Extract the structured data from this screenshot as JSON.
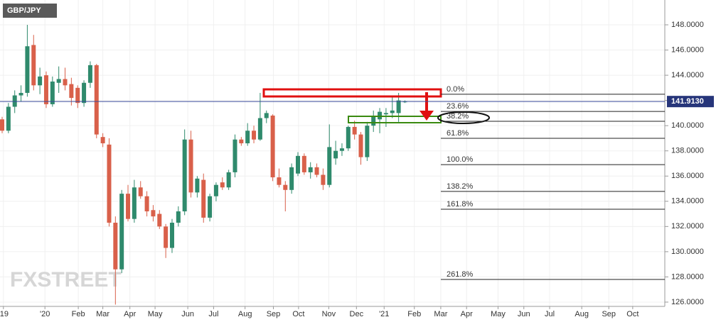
{
  "chart_data": {
    "type": "candlestick",
    "title": "GBP/JPY",
    "watermark": "FXSTREET",
    "up_color": "#2f8a6c",
    "down_color": "#d9604a",
    "x": [
      0,
      1,
      2,
      3,
      4,
      5,
      6,
      7,
      8,
      9,
      10,
      11,
      12,
      13,
      14,
      15,
      16,
      17,
      18,
      19,
      20,
      21,
      22,
      23,
      24,
      25,
      26,
      27,
      28,
      29,
      30,
      31,
      32,
      33,
      34,
      35,
      36,
      37,
      38,
      39,
      40,
      41,
      42,
      43,
      44,
      45,
      46,
      47,
      48,
      49,
      50,
      51,
      52,
      53,
      54,
      55,
      56,
      57,
      58,
      59,
      60,
      61,
      62,
      63,
      64
    ],
    "open": [
      140.5,
      139.6,
      141.5,
      142.4,
      142.6,
      146.4,
      143.2,
      144.0,
      141.7,
      143.4,
      143.7,
      143.3,
      143.0,
      141.8,
      143.4,
      144.8,
      139.1,
      138.5,
      132.3,
      128.6,
      134.6,
      132.6,
      135.1,
      134.4,
      133.3,
      133.0,
      132.0,
      130.3,
      132.3,
      133.2,
      138.9,
      134.7,
      135.7,
      132.7,
      134.4,
      135.5,
      135.1,
      136.3,
      138.9,
      138.6,
      139.6,
      138.9,
      140.6,
      140.8,
      135.9,
      135.3,
      134.9,
      136.2,
      137.6,
      136.3,
      136.7,
      136.1,
      135.3,
      137.4,
      138.0,
      138.2,
      139.9,
      139.3,
      137.5,
      140.0,
      140.5,
      140.9,
      141.0,
      141.0,
      141.9
    ],
    "high": [
      140.7,
      141.8,
      142.8,
      143.2,
      148.0,
      147.2,
      144.6,
      144.3,
      143.9,
      144.7,
      144.6,
      143.8,
      143.2,
      143.6,
      145.1,
      144.9,
      139.4,
      139.0,
      132.8,
      134.9,
      135.3,
      135.7,
      135.6,
      134.8,
      133.7,
      133.3,
      132.2,
      132.6,
      133.6,
      139.7,
      139.6,
      136.0,
      136.2,
      134.6,
      135.5,
      135.9,
      136.5,
      139.3,
      139.1,
      140.2,
      140.0,
      142.6,
      141.2,
      140.9,
      136.6,
      135.6,
      137.0,
      137.9,
      137.8,
      137.1,
      137.0,
      136.6,
      140.1,
      138.8,
      138.6,
      140.0,
      140.4,
      139.5,
      140.3,
      141.2,
      141.4,
      141.4,
      142.4,
      142.6,
      142.0
    ],
    "low": [
      139.4,
      139.4,
      141.0,
      141.9,
      142.3,
      142.8,
      142.5,
      141.4,
      141.5,
      142.6,
      142.8,
      141.6,
      141.4,
      141.5,
      143.0,
      139.0,
      138.3,
      132.0,
      125.8,
      128.3,
      132.4,
      132.3,
      134.2,
      132.8,
      132.4,
      131.8,
      129.5,
      129.9,
      132.0,
      132.9,
      134.3,
      134.3,
      132.3,
      132.4,
      134.0,
      134.9,
      134.9,
      135.9,
      138.4,
      138.4,
      138.6,
      138.8,
      140.2,
      135.6,
      135.1,
      133.2,
      134.6,
      136.0,
      136.1,
      135.8,
      135.9,
      134.9,
      135.1,
      136.9,
      137.6,
      138.0,
      138.9,
      136.9,
      137.2,
      139.5,
      139.4,
      139.9,
      140.6,
      140.3,
      141.8
    ],
    "close": [
      139.6,
      141.5,
      142.4,
      142.6,
      146.3,
      143.2,
      143.9,
      141.7,
      143.5,
      143.7,
      143.2,
      142.2,
      141.8,
      143.4,
      144.8,
      139.3,
      138.6,
      132.3,
      128.6,
      134.6,
      132.6,
      135.1,
      134.4,
      133.2,
      132.8,
      132.0,
      130.3,
      132.3,
      133.2,
      138.9,
      134.7,
      135.8,
      132.7,
      134.4,
      135.3,
      135.1,
      136.3,
      138.9,
      138.6,
      139.6,
      138.9,
      140.6,
      141.0,
      135.9,
      135.3,
      134.9,
      136.7,
      137.6,
      136.3,
      136.7,
      136.1,
      135.3,
      138.3,
      138.0,
      138.2,
      139.9,
      139.3,
      137.5,
      140.0,
      140.7,
      141.1,
      141.0,
      141.2,
      142.0,
      141.913
    ],
    "xlim": [
      -0.34,
      105.3
    ],
    "xticks": [
      {
        "value": 0.2,
        "label": "'19"
      },
      {
        "value": 6.8,
        "label": "'20"
      },
      {
        "value": 12.1,
        "label": "Feb"
      },
      {
        "value": 16.0,
        "label": "Mar"
      },
      {
        "value": 20.3,
        "label": "Apr"
      },
      {
        "value": 24.3,
        "label": "May"
      },
      {
        "value": 29.5,
        "label": "Jun"
      },
      {
        "value": 33.6,
        "label": "Jul"
      },
      {
        "value": 38.6,
        "label": "Aug"
      },
      {
        "value": 43.1,
        "label": "Sep"
      },
      {
        "value": 47.1,
        "label": "Oct"
      },
      {
        "value": 51.9,
        "label": "Nov"
      },
      {
        "value": 56.3,
        "label": "Dec"
      },
      {
        "value": 60.7,
        "label": "'21"
      },
      {
        "value": 65.5,
        "label": "Feb"
      },
      {
        "value": 69.7,
        "label": "Mar"
      },
      {
        "value": 73.8,
        "label": "Apr"
      },
      {
        "value": 78.8,
        "label": "May"
      },
      {
        "value": 82.9,
        "label": "Jun"
      },
      {
        "value": 87.0,
        "label": "Jul"
      },
      {
        "value": 92.1,
        "label": "Aug"
      },
      {
        "value": 96.4,
        "label": "Sep"
      },
      {
        "value": 100.2,
        "label": "Oct"
      }
    ],
    "ylim": [
      125.66,
      149.97
    ],
    "yticks": [
      {
        "value": 126,
        "label": "126.0000"
      },
      {
        "value": 128,
        "label": "128.0000"
      },
      {
        "value": 130,
        "label": "130.0000"
      },
      {
        "value": 132,
        "label": "132.0000"
      },
      {
        "value": 134,
        "label": "134.0000"
      },
      {
        "value": 136,
        "label": "136.0000"
      },
      {
        "value": 138,
        "label": "138.0000"
      },
      {
        "value": 140,
        "label": "140.0000"
      },
      {
        "value": 142,
        "label": "142.0000"
      },
      {
        "value": 144,
        "label": "144.0000"
      },
      {
        "value": 146,
        "label": "146.0000"
      },
      {
        "value": 148,
        "label": "148.0000"
      }
    ],
    "last_price": {
      "value": 141.913,
      "label": "141.9130"
    },
    "fib_levels": [
      {
        "value": 142.49,
        "label": "0.0%"
      },
      {
        "value": 141.13,
        "label": "23.6%"
      },
      {
        "value": 140.35,
        "label": "38.2%"
      },
      {
        "value": 139.0,
        "label": "61.8%"
      },
      {
        "value": 136.91,
        "label": "100.0%"
      },
      {
        "value": 134.78,
        "label": "138.2%"
      },
      {
        "value": 133.37,
        "label": "161.8%"
      },
      {
        "value": 127.8,
        "label": "261.8%"
      }
    ]
  }
}
